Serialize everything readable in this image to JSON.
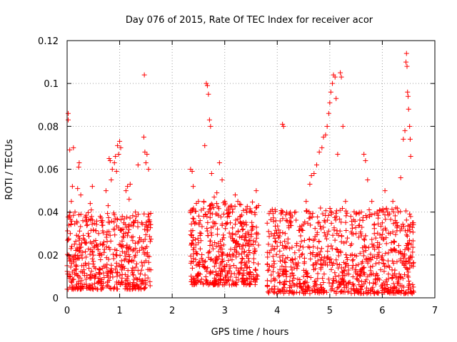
{
  "chart_data": {
    "type": "scatter",
    "title": "Day 076 of 2015, Rate Of TEC Index for receiver acor",
    "xlabel": "GPS time / hours",
    "ylabel": "ROTI / TECUs",
    "xlim": [
      0,
      7
    ],
    "ylim": [
      0,
      0.12
    ],
    "xticks": [
      0,
      1,
      2,
      3,
      4,
      5,
      6,
      7
    ],
    "xtick_labels": [
      "0",
      "1",
      "2",
      "3",
      "4",
      "5",
      "6",
      "7"
    ],
    "yticks": [
      0,
      0.02,
      0.04,
      0.06,
      0.08,
      0.1,
      0.12
    ],
    "ytick_labels": [
      "0",
      "0.02",
      "0.04",
      "0.06",
      "0.08",
      "0.1",
      "0.12"
    ],
    "grid": true,
    "marker": "plus",
    "color": "#ff0000",
    "series": [
      {
        "name": "ROTI",
        "points": [
          [
            0.0,
            0.015
          ],
          [
            0.02,
            0.086
          ],
          [
            0.02,
            0.083
          ],
          [
            0.03,
            0.02
          ],
          [
            0.04,
            0.01
          ],
          [
            0.05,
            0.069
          ],
          [
            0.06,
            0.03
          ],
          [
            0.08,
            0.045
          ],
          [
            0.1,
            0.052
          ],
          [
            0.1,
            0.012
          ],
          [
            0.12,
            0.07
          ],
          [
            0.14,
            0.025
          ],
          [
            0.15,
            0.04
          ],
          [
            0.17,
            0.018
          ],
          [
            0.19,
            0.035
          ],
          [
            0.2,
            0.051
          ],
          [
            0.22,
            0.061
          ],
          [
            0.23,
            0.063
          ],
          [
            0.24,
            0.022
          ],
          [
            0.26,
            0.048
          ],
          [
            0.28,
            0.015
          ],
          [
            0.3,
            0.036
          ],
          [
            0.33,
            0.027
          ],
          [
            0.36,
            0.019
          ],
          [
            0.4,
            0.03
          ],
          [
            0.44,
            0.044
          ],
          [
            0.46,
            0.041
          ],
          [
            0.48,
            0.052
          ],
          [
            0.5,
            0.017
          ],
          [
            0.52,
            0.024
          ],
          [
            0.55,
            0.011
          ],
          [
            0.6,
            0.03
          ],
          [
            0.63,
            0.038
          ],
          [
            0.66,
            0.02
          ],
          [
            0.7,
            0.026
          ],
          [
            0.74,
            0.05
          ],
          [
            0.78,
            0.043
          ],
          [
            0.8,
            0.065
          ],
          [
            0.82,
            0.064
          ],
          [
            0.84,
            0.055
          ],
          [
            0.86,
            0.06
          ],
          [
            0.88,
            0.032
          ],
          [
            0.9,
            0.063
          ],
          [
            0.92,
            0.066
          ],
          [
            0.94,
            0.059
          ],
          [
            0.96,
            0.071
          ],
          [
            0.98,
            0.067
          ],
          [
            1.0,
            0.073
          ],
          [
            1.02,
            0.07
          ],
          [
            1.05,
            0.038
          ],
          [
            1.08,
            0.03
          ],
          [
            1.12,
            0.05
          ],
          [
            1.15,
            0.052
          ],
          [
            1.18,
            0.046
          ],
          [
            1.2,
            0.053
          ],
          [
            1.25,
            0.022
          ],
          [
            1.3,
            0.04
          ],
          [
            1.35,
            0.062
          ],
          [
            1.38,
            0.028
          ],
          [
            1.42,
            0.035
          ],
          [
            1.46,
            0.075
          ],
          [
            1.47,
            0.104
          ],
          [
            1.48,
            0.068
          ],
          [
            1.5,
            0.063
          ],
          [
            1.52,
            0.067
          ],
          [
            1.55,
            0.06
          ],
          [
            2.35,
            0.06
          ],
          [
            2.38,
            0.059
          ],
          [
            2.4,
            0.052
          ],
          [
            2.45,
            0.035
          ],
          [
            2.5,
            0.045
          ],
          [
            2.55,
            0.03
          ],
          [
            2.6,
            0.038
          ],
          [
            2.62,
            0.071
          ],
          [
            2.65,
            0.1
          ],
          [
            2.67,
            0.099
          ],
          [
            2.69,
            0.095
          ],
          [
            2.71,
            0.083
          ],
          [
            2.73,
            0.08
          ],
          [
            2.75,
            0.058
          ],
          [
            2.8,
            0.047
          ],
          [
            2.85,
            0.049
          ],
          [
            2.9,
            0.063
          ],
          [
            2.95,
            0.055
          ],
          [
            3.0,
            0.045
          ],
          [
            3.05,
            0.035
          ],
          [
            3.1,
            0.04
          ],
          [
            3.15,
            0.03
          ],
          [
            3.2,
            0.048
          ],
          [
            3.25,
            0.045
          ],
          [
            3.3,
            0.038
          ],
          [
            3.4,
            0.03
          ],
          [
            3.5,
            0.025
          ],
          [
            3.6,
            0.05
          ],
          [
            3.85,
            0.021
          ],
          [
            3.9,
            0.015
          ],
          [
            3.95,
            0.03
          ],
          [
            4.0,
            0.024
          ],
          [
            4.05,
            0.019
          ],
          [
            4.1,
            0.081
          ],
          [
            4.12,
            0.08
          ],
          [
            4.15,
            0.03
          ],
          [
            4.25,
            0.035
          ],
          [
            4.35,
            0.04
          ],
          [
            4.45,
            0.032
          ],
          [
            4.55,
            0.045
          ],
          [
            4.62,
            0.053
          ],
          [
            4.65,
            0.057
          ],
          [
            4.7,
            0.058
          ],
          [
            4.75,
            0.062
          ],
          [
            4.8,
            0.068
          ],
          [
            4.85,
            0.07
          ],
          [
            4.88,
            0.075
          ],
          [
            4.92,
            0.076
          ],
          [
            4.95,
            0.08
          ],
          [
            4.98,
            0.086
          ],
          [
            5.0,
            0.091
          ],
          [
            5.02,
            0.096
          ],
          [
            5.05,
            0.1
          ],
          [
            5.07,
            0.104
          ],
          [
            5.1,
            0.103
          ],
          [
            5.12,
            0.093
          ],
          [
            5.15,
            0.067
          ],
          [
            5.2,
            0.105
          ],
          [
            5.22,
            0.103
          ],
          [
            5.25,
            0.08
          ],
          [
            5.3,
            0.045
          ],
          [
            5.4,
            0.038
          ],
          [
            5.5,
            0.03
          ],
          [
            5.6,
            0.04
          ],
          [
            5.65,
            0.067
          ],
          [
            5.68,
            0.064
          ],
          [
            5.72,
            0.055
          ],
          [
            5.8,
            0.045
          ],
          [
            5.9,
            0.04
          ],
          [
            6.0,
            0.035
          ],
          [
            6.05,
            0.05
          ],
          [
            6.1,
            0.04
          ],
          [
            6.15,
            0.03
          ],
          [
            6.2,
            0.045
          ],
          [
            6.25,
            0.035
          ],
          [
            6.3,
            0.04
          ],
          [
            6.35,
            0.056
          ],
          [
            6.4,
            0.074
          ],
          [
            6.43,
            0.078
          ],
          [
            6.45,
            0.11
          ],
          [
            6.46,
            0.114
          ],
          [
            6.47,
            0.108
          ],
          [
            6.48,
            0.096
          ],
          [
            6.49,
            0.094
          ],
          [
            6.5,
            0.088
          ],
          [
            6.52,
            0.08
          ],
          [
            6.53,
            0.074
          ],
          [
            6.54,
            0.066
          ],
          [
            6.55,
            0.025
          ]
        ]
      }
    ],
    "dense_clusters": [
      {
        "x_start": 0.0,
        "x_end": 1.6,
        "y_min": 0.004,
        "y_max": 0.04,
        "count": 520
      },
      {
        "x_start": 2.35,
        "x_end": 3.65,
        "y_min": 0.006,
        "y_max": 0.045,
        "count": 480
      },
      {
        "x_start": 3.8,
        "x_end": 6.6,
        "y_min": 0.002,
        "y_max": 0.042,
        "count": 900
      }
    ]
  }
}
